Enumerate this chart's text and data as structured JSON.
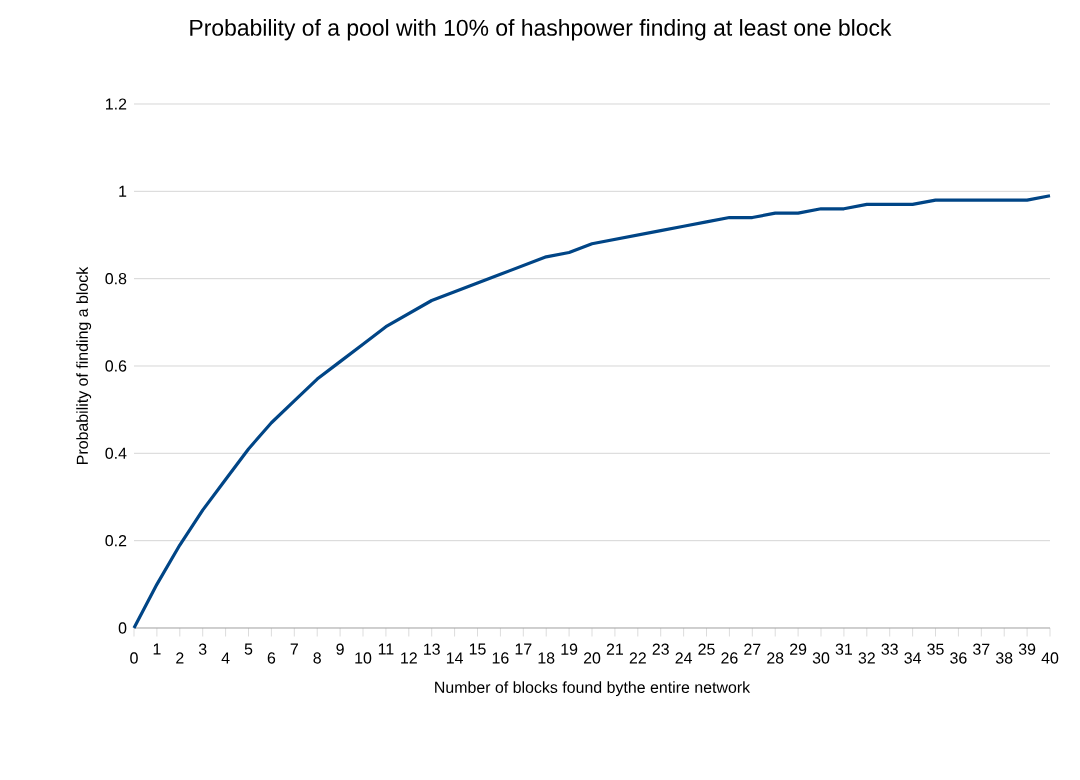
{
  "chart_data": {
    "type": "line",
    "title": "Probability of a pool with 10% of hashpower finding at least one block",
    "xlabel": "Number of blocks found bythe entire network",
    "ylabel": "Probability of finding a block",
    "x": [
      0,
      1,
      2,
      3,
      4,
      5,
      6,
      7,
      8,
      9,
      10,
      11,
      12,
      13,
      14,
      15,
      16,
      17,
      18,
      19,
      20,
      21,
      22,
      23,
      24,
      25,
      26,
      27,
      28,
      29,
      30,
      31,
      32,
      33,
      34,
      35,
      36,
      37,
      38,
      39,
      40
    ],
    "series": [
      {
        "color": "#004586",
        "values": [
          0,
          0.1,
          0.19,
          0.27,
          0.34,
          0.41,
          0.47,
          0.52,
          0.57,
          0.61,
          0.65,
          0.69,
          0.72,
          0.75,
          0.77,
          0.79,
          0.81,
          0.83,
          0.85,
          0.86,
          0.88,
          0.89,
          0.9,
          0.91,
          0.92,
          0.93,
          0.94,
          0.94,
          0.95,
          0.95,
          0.96,
          0.96,
          0.97,
          0.97,
          0.97,
          0.98,
          0.98,
          0.98,
          0.98,
          0.98,
          0.99
        ]
      }
    ],
    "xlim": [
      0,
      40
    ],
    "xticks": [
      0,
      1,
      2,
      3,
      4,
      5,
      6,
      7,
      8,
      9,
      10,
      11,
      12,
      13,
      14,
      15,
      16,
      17,
      18,
      19,
      20,
      21,
      22,
      23,
      24,
      25,
      26,
      27,
      28,
      29,
      30,
      31,
      32,
      33,
      34,
      35,
      36,
      37,
      38,
      39,
      40
    ],
    "ylim": [
      0,
      1.2
    ],
    "yticks": [
      0,
      0.2,
      0.4,
      0.6,
      0.8,
      1,
      1.2
    ],
    "grid": "y",
    "marker": "none",
    "line_style": "solid"
  }
}
